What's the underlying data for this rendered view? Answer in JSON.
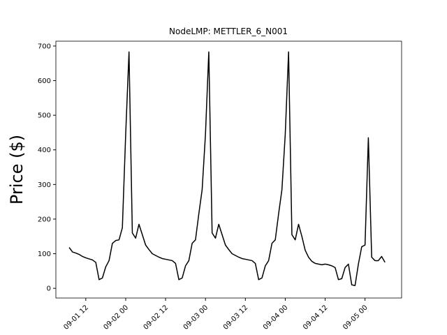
{
  "chart_data": {
    "type": "line",
    "title": "NodeLMP: METTLER_6_N001",
    "y_label": "Price ($)",
    "x": [
      "09-01 07",
      "09-01 08",
      "09-01 09",
      "09-01 10",
      "09-01 11",
      "09-01 12",
      "09-01 13",
      "09-01 14",
      "09-01 15",
      "09-01 16",
      "09-01 17",
      "09-01 18",
      "09-01 19",
      "09-01 20",
      "09-01 21",
      "09-01 22",
      "09-01 23",
      "09-02 00",
      "09-02 01",
      "09-02 02",
      "09-02 03",
      "09-02 04",
      "09-02 05",
      "09-02 06",
      "09-02 07",
      "09-02 08",
      "09-02 09",
      "09-02 10",
      "09-02 11",
      "09-02 12",
      "09-02 13",
      "09-02 14",
      "09-02 15",
      "09-02 16",
      "09-02 17",
      "09-02 18",
      "09-02 19",
      "09-02 20",
      "09-02 21",
      "09-02 22",
      "09-02 23",
      "09-03 00",
      "09-03 01",
      "09-03 02",
      "09-03 03",
      "09-03 04",
      "09-03 05",
      "09-03 06",
      "09-03 07",
      "09-03 08",
      "09-03 09",
      "09-03 10",
      "09-03 11",
      "09-03 12",
      "09-03 13",
      "09-03 14",
      "09-03 15",
      "09-03 16",
      "09-03 17",
      "09-03 18",
      "09-03 19",
      "09-03 20",
      "09-03 21",
      "09-03 22",
      "09-03 23",
      "09-04 00",
      "09-04 01",
      "09-04 02",
      "09-04 03",
      "09-04 04",
      "09-04 05",
      "09-04 06",
      "09-04 07",
      "09-04 08",
      "09-04 09",
      "09-04 10",
      "09-04 11",
      "09-04 12",
      "09-04 13",
      "09-04 14",
      "09-04 15",
      "09-04 16",
      "09-04 17",
      "09-04 18",
      "09-04 19",
      "09-04 20",
      "09-04 21",
      "09-04 22",
      "09-04 23",
      "09-05 00",
      "09-05 01",
      "09-05 02",
      "09-05 03",
      "09-05 04",
      "09-05 05",
      "09-05 06"
    ],
    "series": [
      {
        "name": "METTLER_6_N001",
        "color": "#000000",
        "values": [
          118,
          105,
          102,
          98,
          92,
          88,
          85,
          82,
          75,
          25,
          30,
          62,
          80,
          130,
          138,
          140,
          175,
          445,
          683,
          160,
          145,
          185,
          155,
          125,
          112,
          100,
          95,
          90,
          86,
          84,
          82,
          80,
          72,
          25,
          30,
          65,
          80,
          130,
          140,
          215,
          285,
          445,
          683,
          160,
          145,
          185,
          155,
          125,
          112,
          100,
          95,
          90,
          86,
          84,
          82,
          80,
          72,
          25,
          30,
          65,
          80,
          130,
          140,
          215,
          285,
          445,
          683,
          155,
          140,
          185,
          150,
          110,
          90,
          78,
          72,
          70,
          68,
          70,
          68,
          65,
          60,
          25,
          28,
          60,
          70,
          10,
          8,
          70,
          120,
          125,
          435,
          90,
          80,
          80,
          92,
          75
        ]
      }
    ],
    "xlim": [
      "09-01 03",
      "09-05 11"
    ],
    "xticks": [
      "09-01 12",
      "09-02 00",
      "09-02 12",
      "09-03 00",
      "09-03 12",
      "09-04 00",
      "09-04 12",
      "09-05 00"
    ],
    "ylim": [
      -28,
      714
    ],
    "yticks": [
      0,
      100,
      200,
      300,
      400,
      500,
      600,
      700
    ]
  }
}
